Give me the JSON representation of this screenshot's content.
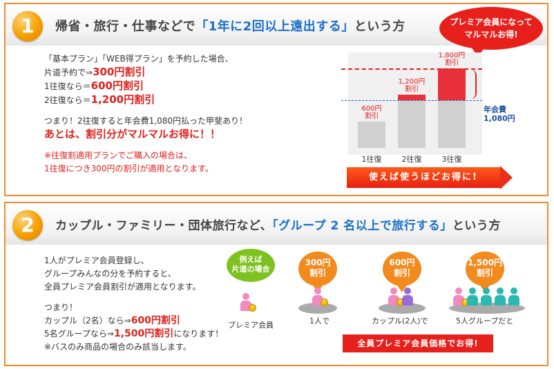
{
  "section1": {
    "number": "1",
    "title_pre": "帰省・旅行・仕事などで",
    "title_hl": "「1年に2回以上遠出する」",
    "title_post": "という方",
    "line1": "「基本プラン」「WEB得プラン」を予約した場合、",
    "line2_pre": "片道予約で⇒",
    "line2_val": "300円割引",
    "line3_pre": "1往復なら＝",
    "line3_val": "600円割引",
    "line4_pre": "2往復なら＝",
    "line4_val": "1,200円割引",
    "line5": "つまり！2往復すると年会費1,080円払った甲斐あり！",
    "line6": "あとは、割引分がマルマルお得に！！",
    "note1": "※往復割適用プランでご購入の場合は、",
    "note2": "1往復につき300円の割引が適用となります。",
    "bubble_line1": "プレミア会員になって",
    "bubble_line2": "マルマルお得!",
    "arrow_label": "使えば使うほどお得に!",
    "fee_label": "年会費",
    "fee_value": "1,080円"
  },
  "chart_data": {
    "type": "bar",
    "categories": [
      "1往復",
      "2往復",
      "3往復"
    ],
    "values": [
      600,
      1200,
      1800
    ],
    "value_labels": [
      "600円",
      "1,200円",
      "1,800円"
    ],
    "sub_label": "割引",
    "reference_line": 1080,
    "ylim": [
      0,
      2000
    ]
  },
  "section2": {
    "number": "2",
    "title_pre": "カップル・ファミリー・団体旅行など、",
    "title_hl": "「グループ 2 名以上で旅行する」",
    "title_post": "という方",
    "line1": "1人がプレミア会員登録し、",
    "line2": "グループみんなの分を予約すると、",
    "line3": "全員プレミア会員割引が適用となります。",
    "line4": "つまり！",
    "line5_pre": "カップル（2名）なら⇒",
    "line5_val": "600円割引",
    "line6_pre": "5名グループなら⇒",
    "line6_val": "1,500円割引",
    "line6_post": "になります！",
    "line7": "※バスのみ商品の場合のみ該当します。",
    "cloud_line1": "例えば",
    "cloud_line2": "片道の場合",
    "premium_label": "プレミア会員",
    "groups": [
      {
        "badge1": "300円",
        "badge2": "割引",
        "label": "1人で"
      },
      {
        "badge1": "600円",
        "badge2": "割引",
        "label": "カップル(2人)で"
      },
      {
        "badge1": "1,500円",
        "badge2": "割引",
        "label": "5人グループだと"
      }
    ],
    "button_label": "全員プレミア会員価格でお得!",
    "colors": {
      "premium": "#f08ac0",
      "couple2": "#9a6ad8",
      "group": "#2ab8b0"
    }
  }
}
